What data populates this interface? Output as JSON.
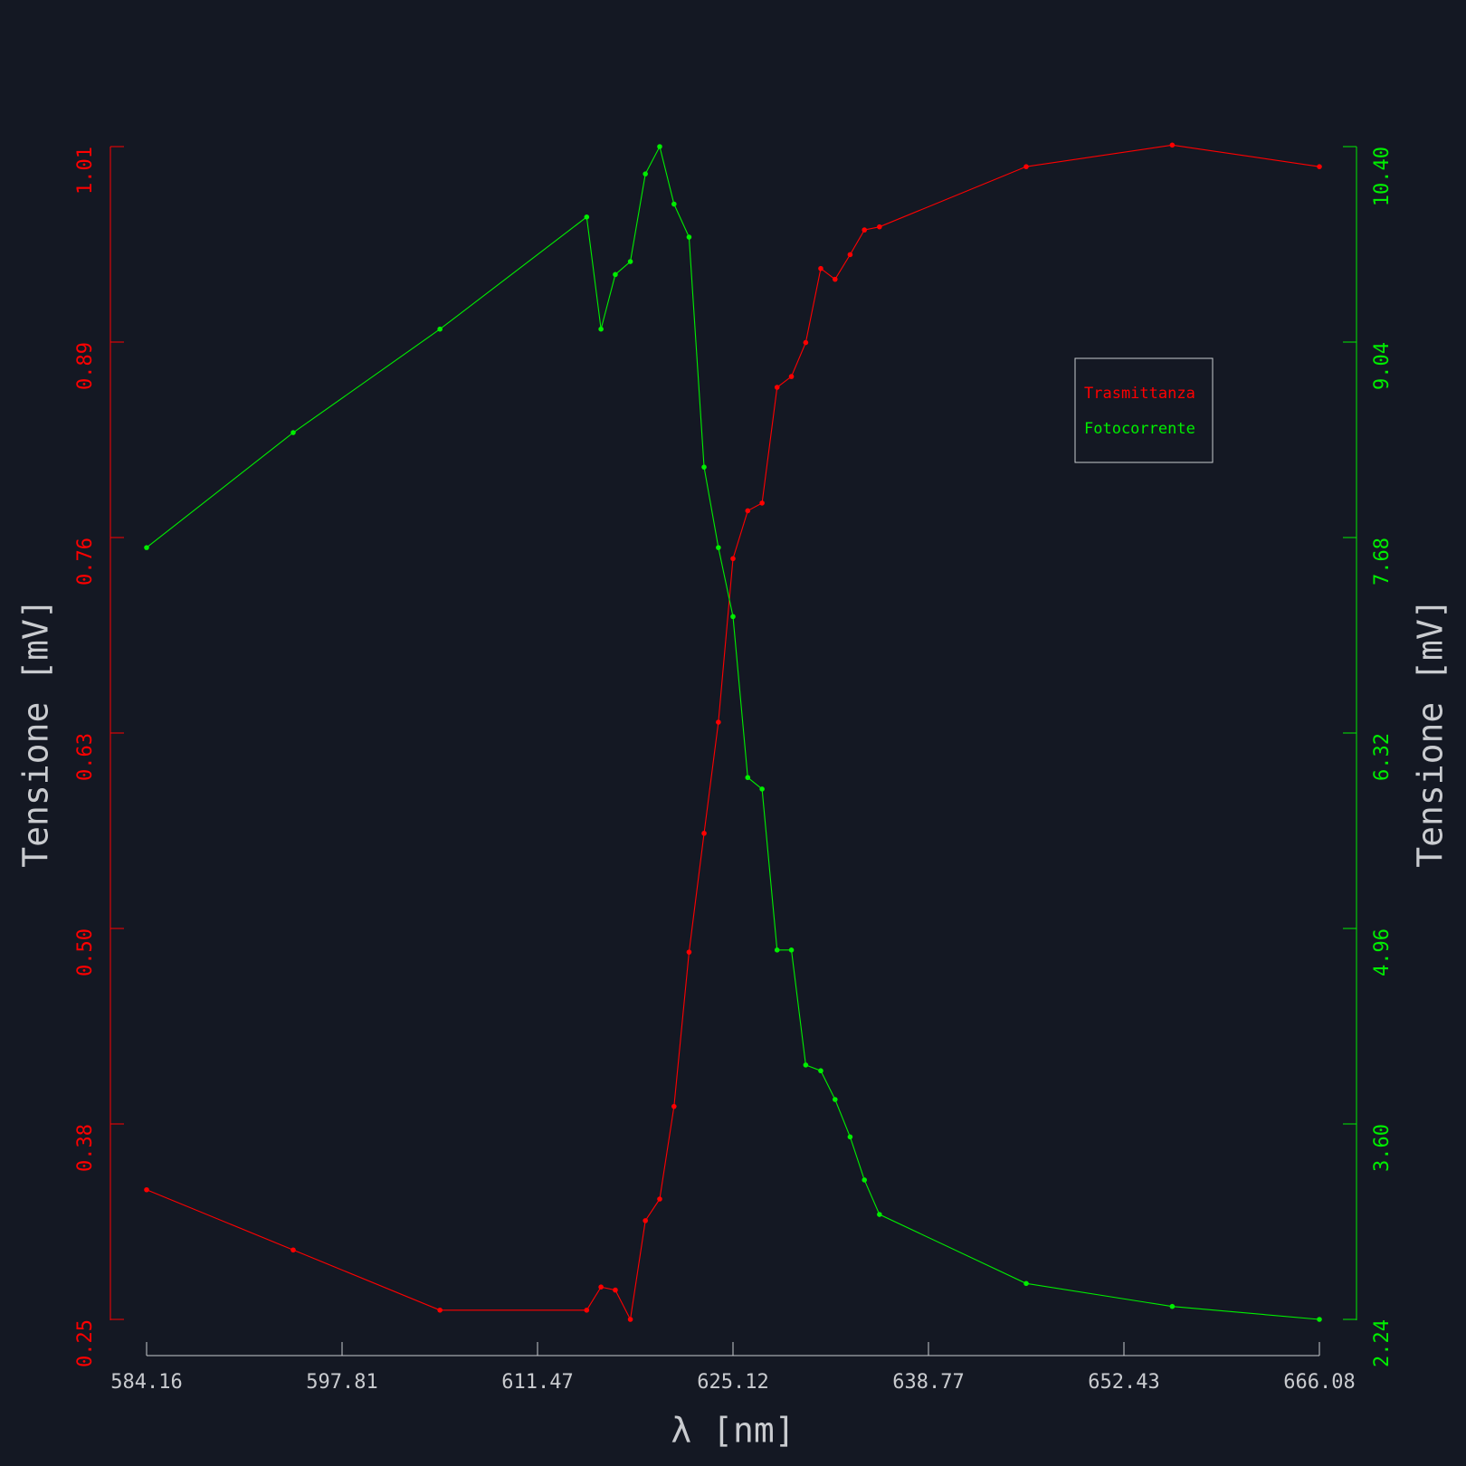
{
  "chart_data": {
    "type": "line",
    "xlabel": "λ [nm]",
    "ylabel_left": "Tensione [mV]",
    "ylabel_right": "Tensione [mV]",
    "xlim": [
      584.16,
      666.08
    ],
    "x_ticks": [
      "584.16",
      "597.81",
      "611.47",
      "625.12",
      "638.77",
      "652.43",
      "666.08"
    ],
    "y_left_lim": [
      0.25,
      1.01
    ],
    "y_left_ticks": [
      "0.25",
      "0.38",
      "0.50",
      "0.63",
      "0.76",
      "0.89",
      "1.01"
    ],
    "y_right_lim": [
      2.24,
      10.4
    ],
    "y_right_ticks": [
      "2.24",
      "3.60",
      "4.96",
      "6.32",
      "7.68",
      "9.04",
      "10.40"
    ],
    "legend_position": "upper-right",
    "grid": false,
    "colors": {
      "background": "#141823",
      "trasmittanza": "#ff0000",
      "fotocorrente": "#00ee00",
      "axis_x": "#c9cbcf",
      "axis_title": "#c9cbcf"
    },
    "series": [
      {
        "name": "Trasmittanza",
        "axis": "left",
        "x": [
          584.16,
          594.4,
          604.65,
          614.9,
          615.9,
          616.9,
          617.95,
          619.0,
          620.0,
          621.0,
          622.05,
          623.1,
          624.1,
          625.12,
          626.15,
          627.15,
          628.2,
          629.2,
          630.2,
          631.25,
          632.25,
          633.3,
          634.3,
          635.35,
          645.6,
          655.8,
          666.08
        ],
        "values": [
          0.334,
          0.295,
          0.256,
          0.256,
          0.271,
          0.269,
          0.25,
          0.314,
          0.328,
          0.388,
          0.488,
          0.565,
          0.637,
          0.743,
          0.774,
          0.779,
          0.854,
          0.861,
          0.883,
          0.931,
          0.924,
          0.94,
          0.956,
          0.958,
          0.997,
          1.011,
          0.997
        ]
      },
      {
        "name": "Fotocorrente",
        "axis": "right",
        "x": [
          584.16,
          594.4,
          604.65,
          614.9,
          615.9,
          616.9,
          617.95,
          619.0,
          620.0,
          621.0,
          622.05,
          623.1,
          624.1,
          625.12,
          626.15,
          627.15,
          628.2,
          629.2,
          630.2,
          631.25,
          632.25,
          633.3,
          634.3,
          635.35,
          645.6,
          655.8,
          666.08
        ],
        "values": [
          7.61,
          8.41,
          9.13,
          9.91,
          9.13,
          9.51,
          9.6,
          10.21,
          10.4,
          10.0,
          9.77,
          8.17,
          7.61,
          7.13,
          6.01,
          5.93,
          4.81,
          4.81,
          4.01,
          3.97,
          3.77,
          3.51,
          3.21,
          2.97,
          2.49,
          2.33,
          2.24
        ]
      }
    ]
  }
}
